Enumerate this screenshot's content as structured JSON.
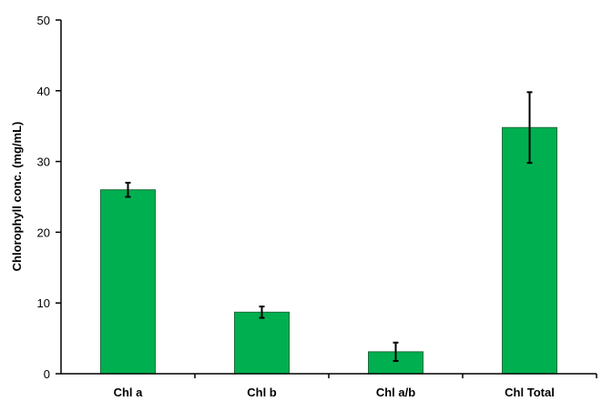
{
  "chart_data": {
    "type": "bar",
    "title": "",
    "xlabel": "",
    "ylabel": "Chlorophyll conc. (mg/mL)",
    "ylim": [
      0,
      50
    ],
    "yticks": [
      0,
      10,
      20,
      30,
      40,
      50
    ],
    "grid": false,
    "categories": [
      "Chl a",
      "Chl b",
      "Chl a/b",
      "Chl Total"
    ],
    "values": [
      26,
      8.7,
      3.1,
      34.8
    ],
    "errors": [
      1.0,
      0.8,
      1.3,
      5.0
    ],
    "bar_color": "#00B050",
    "bar_edge_color": "#1E6B3A"
  }
}
